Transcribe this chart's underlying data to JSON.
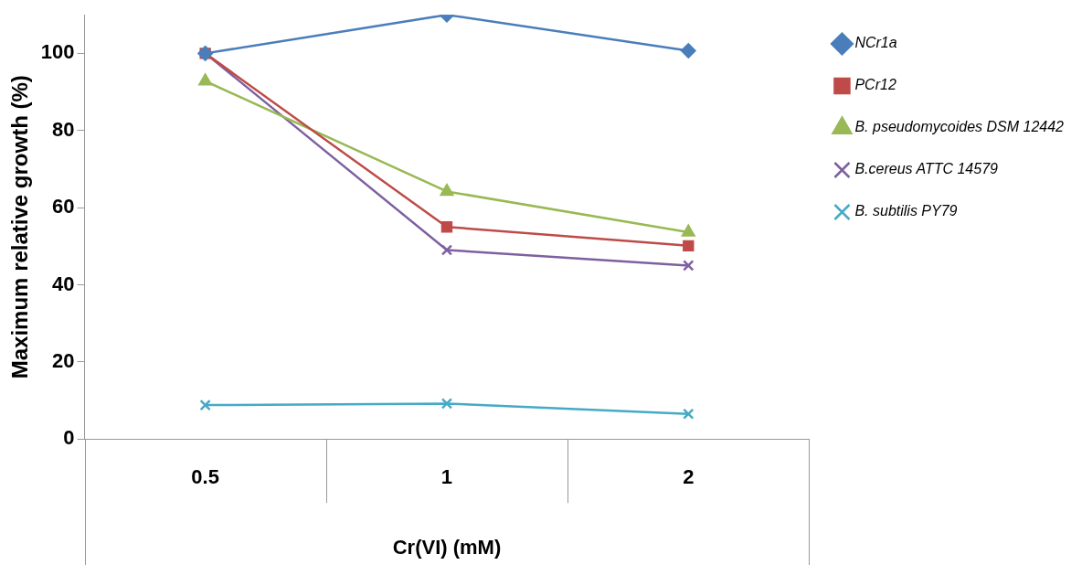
{
  "chart_data": {
    "type": "line",
    "xlabel": "Cr(VI) (mM)",
    "ylabel": "Maximum relative growth (%)",
    "categories": [
      "0.5",
      "1",
      "2"
    ],
    "ylim": [
      0,
      110
    ],
    "yticks": [
      0,
      20,
      40,
      60,
      80,
      100
    ],
    "grid": false,
    "legend": "right",
    "series": [
      {
        "name": "NCr1a",
        "color": "#4a7ebb",
        "marker": "diamond",
        "values": [
          100,
          110,
          100.7
        ]
      },
      {
        "name": "PCr12",
        "color": "#be4b48",
        "marker": "square",
        "values": [
          100,
          55,
          50.1
        ]
      },
      {
        "name": "B. pseudomycoides DSM 12442",
        "color": "#98b954",
        "marker": "triangle",
        "values": [
          92.8,
          64.2,
          53.6
        ]
      },
      {
        "name": "B.cereus ATTC 14579",
        "color": "#7d60a0",
        "marker": "cross",
        "values": [
          100,
          49,
          45
        ]
      },
      {
        "name": "B. subtilis PY79",
        "color": "#46aac5",
        "marker": "cross",
        "values": [
          8.8,
          9.2,
          6.5
        ]
      }
    ]
  }
}
